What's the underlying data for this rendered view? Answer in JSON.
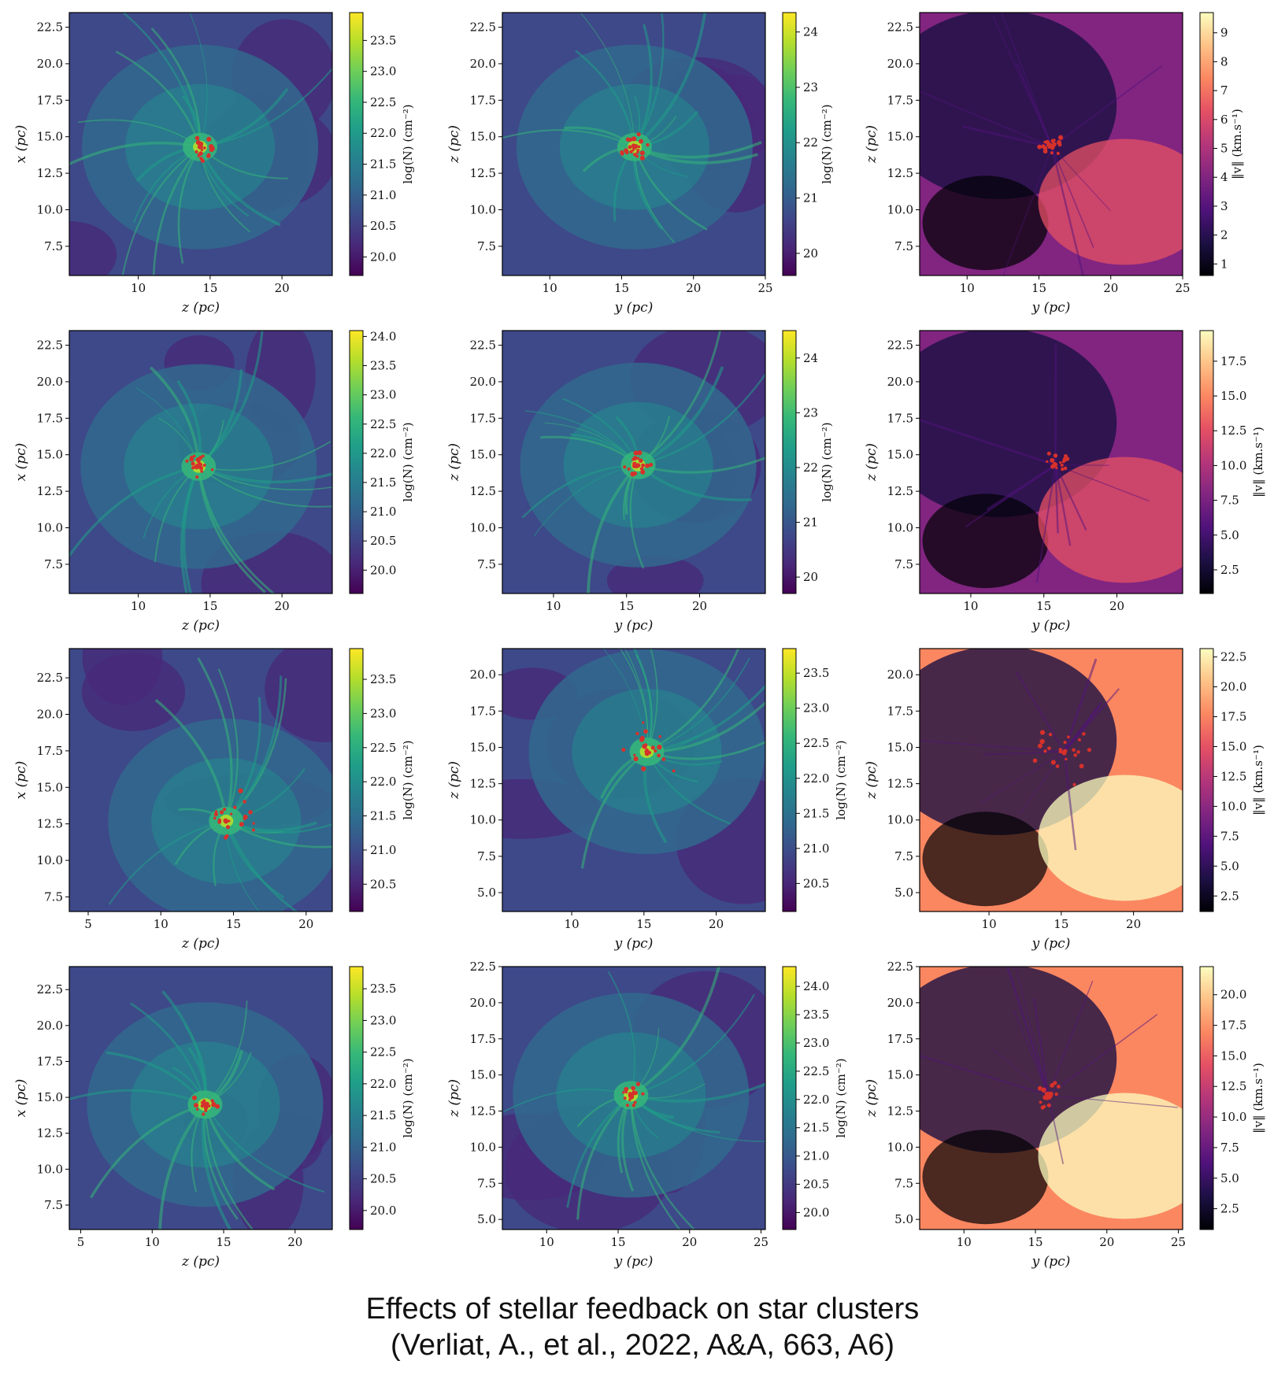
{
  "caption": {
    "line1": "Effects of stellar feedback on star clusters",
    "line2": "(Verliat, A., et al., 2022, A&A, 663, A6)"
  },
  "colormaps": {
    "viridis": [
      "#440154",
      "#482878",
      "#3e4989",
      "#31688e",
      "#26828e",
      "#1f9e89",
      "#35b779",
      "#6ece58",
      "#b5de2b",
      "#fde725"
    ],
    "magma": [
      "#000004",
      "#1c1044",
      "#4f127b",
      "#812581",
      "#b5367a",
      "#e55064",
      "#fb8761",
      "#fec287",
      "#fcfdbf"
    ]
  },
  "star_color": "#d6312b",
  "chart_data": [
    {
      "type": "heatmap",
      "row": 1,
      "col": 1,
      "cmap": "viridis",
      "xlabel": "z (pc)",
      "ylabel": "x (pc)",
      "xlim": [
        5.2,
        23.5
      ],
      "ylim": [
        5.5,
        23.5
      ],
      "xticks": [
        10,
        15,
        20
      ],
      "yticks": [
        7.5,
        10.0,
        12.5,
        15.0,
        17.5,
        20.0,
        22.5
      ],
      "colorbar": {
        "label": "log(N) (cm⁻²)",
        "range": [
          19.7,
          23.95
        ],
        "ticks": [
          20.0,
          20.5,
          21.0,
          21.5,
          22.0,
          22.5,
          23.0,
          23.5
        ]
      },
      "cluster_center": [
        14.3,
        14.3
      ]
    },
    {
      "type": "heatmap",
      "row": 1,
      "col": 2,
      "cmap": "viridis",
      "xlabel": "y (pc)",
      "ylabel": "z (pc)",
      "xlim": [
        6.7,
        25
      ],
      "ylim": [
        5.5,
        23.5
      ],
      "xticks": [
        10,
        15,
        20,
        25
      ],
      "yticks": [
        7.5,
        10.0,
        12.5,
        15.0,
        17.5,
        20.0,
        22.5
      ],
      "colorbar": {
        "label": "log(N) (cm⁻²)",
        "range": [
          19.6,
          24.35
        ],
        "ticks": [
          20,
          21,
          22,
          23,
          24
        ]
      },
      "cluster_center": [
        15.9,
        14.3
      ]
    },
    {
      "type": "heatmap",
      "row": 1,
      "col": 3,
      "cmap": "magma",
      "xlabel": "y (pc)",
      "ylabel": "z (pc)",
      "xlim": [
        6.7,
        25
      ],
      "ylim": [
        5.5,
        23.5
      ],
      "xticks": [
        10,
        15,
        20,
        25
      ],
      "yticks": [
        7.5,
        10.0,
        12.5,
        15.0,
        17.5,
        20.0,
        22.5
      ],
      "colorbar": {
        "label": "‖v‖ (km.s⁻¹)",
        "range": [
          0.6,
          9.7
        ],
        "ticks": [
          1,
          2,
          3,
          4,
          5,
          6,
          7,
          8,
          9
        ]
      },
      "cluster_center": [
        15.9,
        14.3
      ]
    },
    {
      "type": "heatmap",
      "row": 2,
      "col": 1,
      "cmap": "viridis",
      "xlabel": "z (pc)",
      "ylabel": "x (pc)",
      "xlim": [
        5.2,
        23.5
      ],
      "ylim": [
        5.5,
        23.5
      ],
      "xticks": [
        10,
        15,
        20
      ],
      "yticks": [
        7.5,
        10.0,
        12.5,
        15.0,
        17.5,
        20.0,
        22.5
      ],
      "colorbar": {
        "label": "log(N) (cm⁻²)",
        "range": [
          19.6,
          24.1
        ],
        "ticks": [
          20.0,
          20.5,
          21.0,
          21.5,
          22.0,
          22.5,
          23.0,
          23.5,
          24.0
        ]
      },
      "cluster_center": [
        14.2,
        14.2
      ]
    },
    {
      "type": "heatmap",
      "row": 2,
      "col": 2,
      "cmap": "viridis",
      "xlabel": "y (pc)",
      "ylabel": "z (pc)",
      "xlim": [
        6.5,
        24.5
      ],
      "ylim": [
        5.5,
        23.5
      ],
      "xticks": [
        10,
        15,
        20
      ],
      "yticks": [
        7.5,
        10.0,
        12.5,
        15.0,
        17.5,
        20.0,
        22.5
      ],
      "colorbar": {
        "label": "log(N) (cm⁻²)",
        "range": [
          19.7,
          24.5
        ],
        "ticks": [
          20,
          21,
          22,
          23,
          24
        ]
      },
      "cluster_center": [
        15.8,
        14.3
      ]
    },
    {
      "type": "heatmap",
      "row": 2,
      "col": 3,
      "cmap": "magma",
      "xlabel": "y (pc)",
      "ylabel": "z (pc)",
      "xlim": [
        6.5,
        24.5
      ],
      "ylim": [
        5.5,
        23.5
      ],
      "xticks": [
        10,
        15,
        20
      ],
      "yticks": [
        7.5,
        10.0,
        12.5,
        15.0,
        17.5,
        20.0,
        22.5
      ],
      "colorbar": {
        "label": "‖v‖ (km.s⁻¹)",
        "range": [
          0.8,
          19.7
        ],
        "ticks": [
          2.5,
          5.0,
          7.5,
          10.0,
          12.5,
          15.0,
          17.5
        ]
      },
      "cluster_center": [
        15.8,
        14.3
      ]
    },
    {
      "type": "heatmap",
      "row": 3,
      "col": 1,
      "cmap": "viridis",
      "xlabel": "z (pc)",
      "ylabel": "x (pc)",
      "xlim": [
        3.7,
        21.8
      ],
      "ylim": [
        6.5,
        24.5
      ],
      "xticks": [
        5,
        10,
        15,
        20
      ],
      "yticks": [
        7.5,
        10.0,
        12.5,
        15.0,
        17.5,
        20.0,
        22.5
      ],
      "colorbar": {
        "label": "log(N) (cm⁻²)",
        "range": [
          20.1,
          23.95
        ],
        "ticks": [
          20.5,
          21.0,
          21.5,
          22.0,
          22.5,
          23.0,
          23.5
        ]
      },
      "cluster_center": [
        14.5,
        12.7
      ]
    },
    {
      "type": "heatmap",
      "row": 3,
      "col": 2,
      "cmap": "viridis",
      "xlabel": "y (pc)",
      "ylabel": "z (pc)",
      "xlim": [
        5.2,
        23.4
      ],
      "ylim": [
        3.7,
        21.8
      ],
      "xticks": [
        10,
        15,
        20
      ],
      "yticks": [
        5.0,
        7.5,
        10.0,
        12.5,
        15.0,
        17.5,
        20.0
      ],
      "colorbar": {
        "label": "log(N) (cm⁻²)",
        "range": [
          20.1,
          23.85
        ],
        "ticks": [
          20.5,
          21.0,
          21.5,
          22.0,
          22.5,
          23.0,
          23.5
        ]
      },
      "cluster_center": [
        15.2,
        14.7
      ]
    },
    {
      "type": "heatmap",
      "row": 3,
      "col": 3,
      "cmap": "magma",
      "xlabel": "y (pc)",
      "ylabel": "z (pc)",
      "xlim": [
        5.2,
        23.4
      ],
      "ylim": [
        3.7,
        21.8
      ],
      "xticks": [
        10,
        15,
        20
      ],
      "yticks": [
        5.0,
        7.5,
        10.0,
        12.5,
        15.0,
        17.5,
        20.0
      ],
      "colorbar": {
        "label": "‖v‖ (km.s⁻¹)",
        "range": [
          1.2,
          23.2
        ],
        "ticks": [
          2.5,
          5.0,
          7.5,
          10.0,
          12.5,
          15.0,
          17.5,
          20.0,
          22.5
        ]
      },
      "cluster_center": [
        15.2,
        14.7
      ]
    },
    {
      "type": "heatmap",
      "row": 4,
      "col": 1,
      "cmap": "viridis",
      "xlabel": "z (pc)",
      "ylabel": "x (pc)",
      "xlim": [
        4.2,
        22.6
      ],
      "ylim": [
        5.8,
        24.1
      ],
      "xticks": [
        5,
        10,
        15,
        20
      ],
      "yticks": [
        7.5,
        10.0,
        12.5,
        15.0,
        17.5,
        20.0,
        22.5
      ],
      "colorbar": {
        "label": "log(N) (cm⁻²)",
        "range": [
          19.7,
          23.85
        ],
        "ticks": [
          20.0,
          20.5,
          21.0,
          21.5,
          22.0,
          22.5,
          23.0,
          23.5
        ]
      },
      "cluster_center": [
        13.7,
        14.5
      ]
    },
    {
      "type": "heatmap",
      "row": 4,
      "col": 2,
      "cmap": "viridis",
      "xlabel": "y (pc)",
      "ylabel": "z (pc)",
      "xlim": [
        6.9,
        25.3
      ],
      "ylim": [
        4.3,
        22.5
      ],
      "xticks": [
        10,
        15,
        20,
        25
      ],
      "yticks": [
        5.0,
        7.5,
        10.0,
        12.5,
        15.0,
        17.5,
        20.0,
        22.5
      ],
      "colorbar": {
        "label": "log(N) (cm⁻²)",
        "range": [
          19.7,
          24.35
        ],
        "ticks": [
          20.0,
          20.5,
          21.0,
          21.5,
          22.0,
          22.5,
          23.0,
          23.5,
          24.0
        ]
      },
      "cluster_center": [
        15.9,
        13.6
      ]
    },
    {
      "type": "heatmap",
      "row": 4,
      "col": 3,
      "cmap": "magma",
      "xlabel": "y (pc)",
      "ylabel": "z (pc)",
      "xlim": [
        6.9,
        25.3
      ],
      "ylim": [
        4.3,
        22.5
      ],
      "xticks": [
        10,
        15,
        20,
        25
      ],
      "yticks": [
        5.0,
        7.5,
        10.0,
        12.5,
        15.0,
        17.5,
        20.0,
        22.5
      ],
      "colorbar": {
        "label": "‖v‖ (km.s⁻¹)",
        "range": [
          0.8,
          22.3
        ],
        "ticks": [
          2.5,
          5.0,
          7.5,
          10.0,
          12.5,
          15.0,
          17.5,
          20.0
        ]
      },
      "cluster_center": [
        15.9,
        13.6
      ]
    }
  ]
}
